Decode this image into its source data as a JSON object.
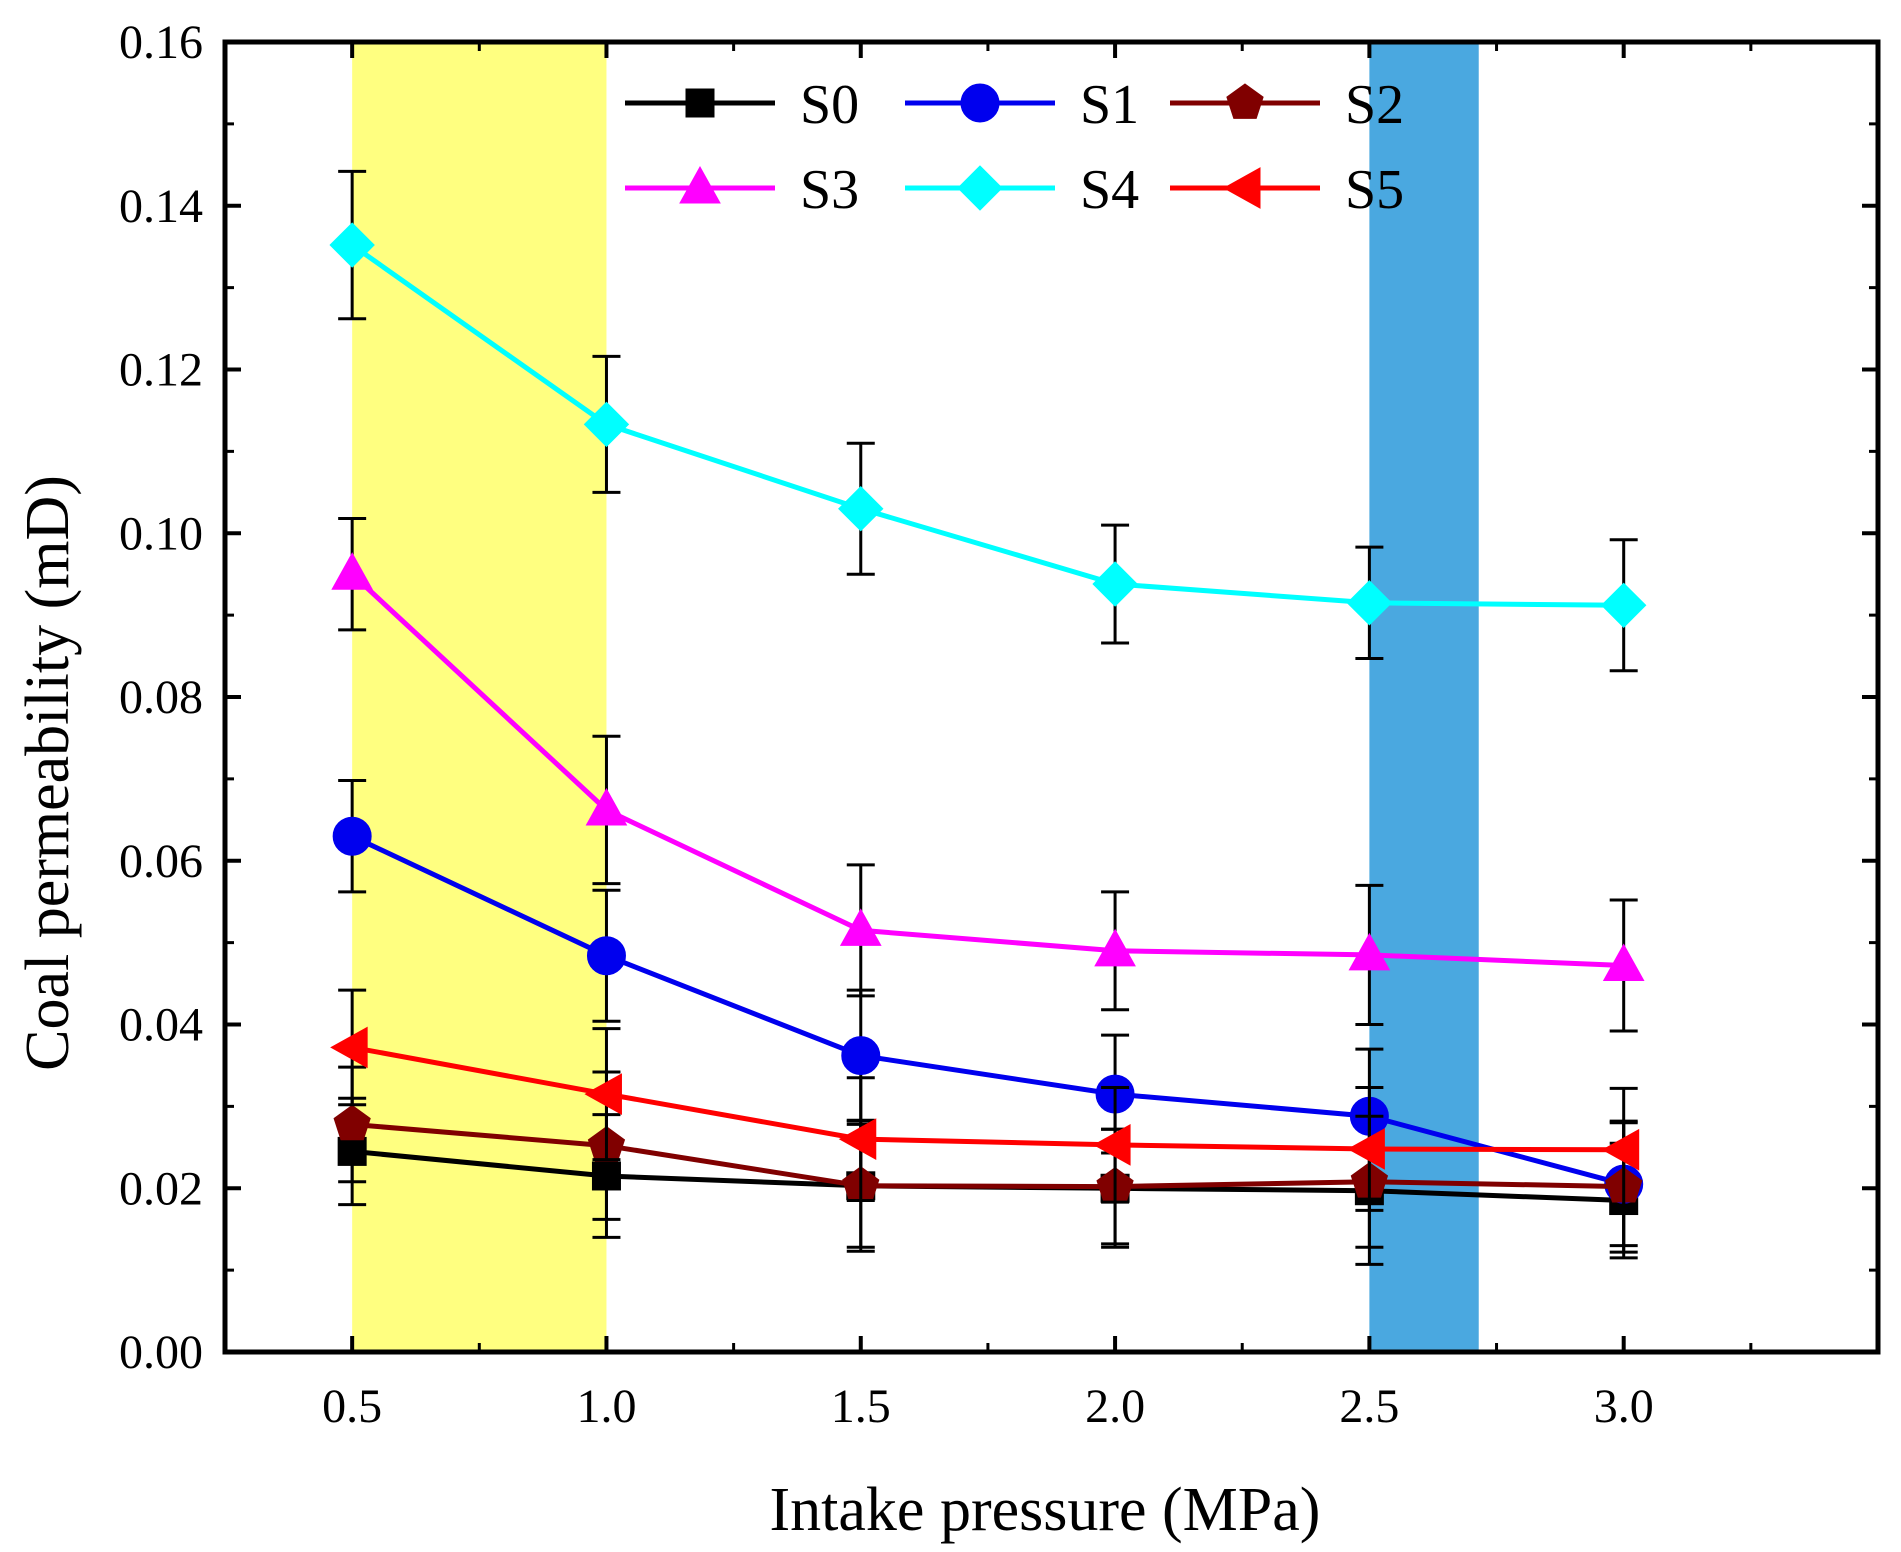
{
  "chart_data": {
    "type": "line",
    "title": "",
    "xlabel": "Intake pressure (MPa)",
    "ylabel": "Coal permeability (mD)",
    "xlim": [
      0.25,
      3.5
    ],
    "ylim": [
      0.0,
      0.16
    ],
    "x": [
      0.5,
      1.0,
      1.5,
      2.0,
      2.5,
      3.0
    ],
    "xticks": [
      "0.5",
      "1.0",
      "1.5",
      "2.0",
      "2.5",
      "3.0"
    ],
    "yticks": [
      "0.00",
      "0.02",
      "0.04",
      "0.06",
      "0.08",
      "0.10",
      "0.12",
      "0.14",
      "0.16"
    ],
    "shaded_regions": [
      {
        "x_from": 0.5,
        "x_to": 1.0,
        "color": "#ffff80"
      },
      {
        "x_from": 2.5,
        "x_to": 2.715,
        "color": "#4aa8e0"
      }
    ],
    "legend_position": "top-center",
    "series": [
      {
        "name": "S0",
        "color": "#000000",
        "marker": "square",
        "values": [
          0.0245,
          0.0215,
          0.0203,
          0.02,
          0.0197,
          0.0185
        ],
        "errors": [
          0.0065,
          0.0075,
          0.0075,
          0.0072,
          0.009,
          0.007
        ]
      },
      {
        "name": "S1",
        "color": "#0000ee",
        "marker": "circle",
        "values": [
          0.063,
          0.0484,
          0.0362,
          0.0315,
          0.0288,
          0.0205
        ],
        "errors": [
          0.0068,
          0.008,
          0.008,
          0.0072,
          0.0082,
          0.0075
        ]
      },
      {
        "name": "S2",
        "color": "#800000",
        "marker": "pentagon",
        "values": [
          0.0278,
          0.0252,
          0.0203,
          0.0202,
          0.0208,
          0.0202
        ],
        "errors": [
          0.007,
          0.009,
          0.008,
          0.007,
          0.008,
          0.008
        ]
      },
      {
        "name": "S3",
        "color": "#ff00ff",
        "marker": "triangle-up",
        "values": [
          0.095,
          0.0662,
          0.0515,
          0.049,
          0.0485,
          0.0472
        ],
        "errors": [
          0.0068,
          0.009,
          0.008,
          0.0072,
          0.0085,
          0.008
        ]
      },
      {
        "name": "S4",
        "color": "#00ffff",
        "marker": "diamond",
        "values": [
          0.1352,
          0.1133,
          0.103,
          0.0938,
          0.0915,
          0.0912
        ],
        "errors": [
          0.009,
          0.0083,
          0.008,
          0.0072,
          0.0068,
          0.008
        ]
      },
      {
        "name": "S5",
        "color": "#ff0000",
        "marker": "triangle-left",
        "values": [
          0.0372,
          0.0315,
          0.026,
          0.0253,
          0.0248,
          0.0247
        ],
        "errors": [
          0.007,
          0.008,
          0.0075,
          0.007,
          0.0075,
          0.0075
        ]
      }
    ]
  }
}
